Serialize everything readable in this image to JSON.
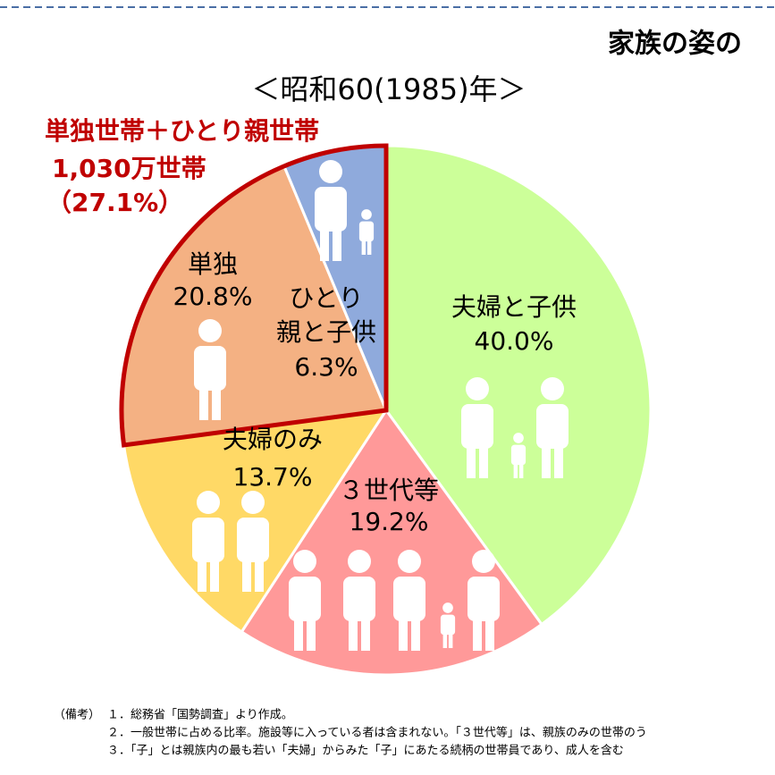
{
  "chart_data": {
    "type": "pie",
    "title": "家族の姿の",
    "subtitle": "＜昭和60(1985)年＞",
    "categories": [
      "夫婦と子供",
      "３世代等",
      "夫婦のみ",
      "単独",
      "ひとり親と子供"
    ],
    "values": [
      40.0,
      19.2,
      13.7,
      20.8,
      6.3
    ],
    "value_labels": [
      "40.0%",
      "19.2%",
      "13.7%",
      "20.8%",
      "6.3%"
    ],
    "colors": [
      "#ccff99",
      "#ff9999",
      "#ffd966",
      "#f4b183",
      "#8faadc"
    ],
    "highlight": {
      "color": "#c00000",
      "categories": [
        3,
        4
      ],
      "lines": [
        "単独世帯＋ひとり親世帯",
        "1,030万世帯",
        "（27.1%）"
      ]
    },
    "notes_label": "（備考）",
    "notes": [
      "１．総務省「国勢調査」より作成。",
      "２．一般世帯に占める比率。施設等に入っている者は含まれない。「３世代等」は、親族のみの世帯のう",
      "３．「子」とは親族内の最も若い「夫婦」からみた「子」にあたる続柄の世帯員であり、成人を含む"
    ]
  }
}
